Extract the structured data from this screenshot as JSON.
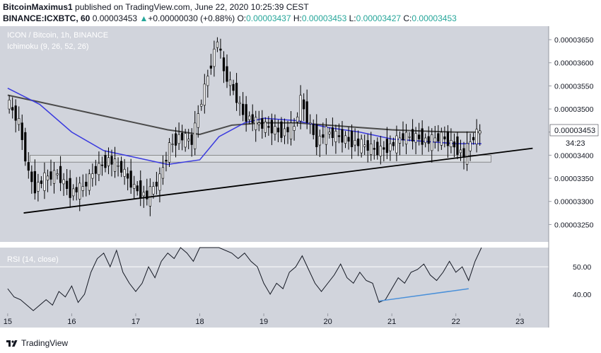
{
  "header": {
    "author": "BitcoinMaximus1",
    "published": "published on TradingView.com, June 22, 2020 10:25:39 CEST",
    "symbol": "BINANCE:ICXBTC, 60",
    "last": "0.00003453",
    "change": "+0.00000030 (+0.88%)",
    "o_label": "O:",
    "o": "0.00003437",
    "h_label": "H:",
    "h": "0.00003453",
    "l_label": "L:",
    "l": "0.00003427",
    "c_label": "C:",
    "c": "0.00003453"
  },
  "legend": {
    "title": "ICON / Bitcoin, 1h, BINANCE",
    "indicator": "Ichimoku (9, 26, 52, 26)",
    "rsi": "RSI (14, close)"
  },
  "price_badge": "0.00003453",
  "countdown": "34:23",
  "brand": "TradingView",
  "colors": {
    "background": "#d1d4dc",
    "up_candle": "#ffffff",
    "down_candle": "#000000",
    "ma_fast": "#3a3adf",
    "ma_slow": "#4a4a4a",
    "rsi_divergence": "#4a90d9"
  },
  "chart_data": [
    {
      "type": "candlestick",
      "title": "ICON / Bitcoin, 1h, BINANCE",
      "xlabel": "",
      "ylabel": "",
      "x_ticks": [
        "15",
        "16",
        "17",
        "18",
        "19",
        "20",
        "21",
        "22",
        "23"
      ],
      "y_ticks": [
        "0.00003250",
        "0.00003300",
        "0.00003350",
        "0.00003400",
        "0.00003450",
        "0.00003500",
        "0.00003550",
        "0.00003600",
        "0.00003650"
      ],
      "ylim": [
        3.22e-05,
        3.67e-05
      ],
      "price_close_path": [
        [
          15.0,
          3.52e-05
        ],
        [
          15.2,
          3.47e-05
        ],
        [
          15.35,
          3.36e-05
        ],
        [
          15.45,
          3.33e-05
        ],
        [
          15.6,
          3.35e-05
        ],
        [
          15.8,
          3.36e-05
        ],
        [
          16.0,
          3.32e-05
        ],
        [
          16.2,
          3.33e-05
        ],
        [
          16.4,
          3.37e-05
        ],
        [
          16.6,
          3.39e-05
        ],
        [
          16.8,
          3.37e-05
        ],
        [
          17.0,
          3.33e-05
        ],
        [
          17.2,
          3.31e-05
        ],
        [
          17.4,
          3.35e-05
        ],
        [
          17.55,
          3.42e-05
        ],
        [
          17.7,
          3.44e-05
        ],
        [
          17.9,
          3.43e-05
        ],
        [
          18.05,
          3.52e-05
        ],
        [
          18.2,
          3.6e-05
        ],
        [
          18.3,
          3.65e-05
        ],
        [
          18.4,
          3.58e-05
        ],
        [
          18.55,
          3.54e-05
        ],
        [
          18.7,
          3.49e-05
        ],
        [
          18.9,
          3.47e-05
        ],
        [
          19.1,
          3.46e-05
        ],
        [
          19.3,
          3.45e-05
        ],
        [
          19.5,
          3.46e-05
        ],
        [
          19.6,
          3.52e-05
        ],
        [
          19.7,
          3.48e-05
        ],
        [
          19.85,
          3.43e-05
        ],
        [
          20.0,
          3.45e-05
        ],
        [
          20.2,
          3.44e-05
        ],
        [
          20.4,
          3.43e-05
        ],
        [
          20.6,
          3.42e-05
        ],
        [
          20.8,
          3.41e-05
        ],
        [
          21.0,
          3.42e-05
        ],
        [
          21.2,
          3.44e-05
        ],
        [
          21.4,
          3.44e-05
        ],
        [
          21.6,
          3.43e-05
        ],
        [
          21.8,
          3.44e-05
        ],
        [
          22.0,
          3.42e-05
        ],
        [
          22.15,
          3.4e-05
        ],
        [
          22.3,
          3.44e-05
        ],
        [
          22.4,
          3.453e-05
        ]
      ],
      "ma_fast": [
        [
          15.0,
          3.545e-05
        ],
        [
          15.5,
          3.51e-05
        ],
        [
          16.0,
          3.45e-05
        ],
        [
          16.5,
          3.41e-05
        ],
        [
          17.0,
          3.395e-05
        ],
        [
          17.5,
          3.38e-05
        ],
        [
          18.0,
          3.39e-05
        ],
        [
          18.3,
          3.44e-05
        ],
        [
          18.7,
          3.47e-05
        ],
        [
          19.0,
          3.48e-05
        ],
        [
          19.5,
          3.475e-05
        ],
        [
          20.0,
          3.46e-05
        ],
        [
          20.5,
          3.45e-05
        ],
        [
          21.0,
          3.435e-05
        ],
        [
          21.5,
          3.43e-05
        ],
        [
          22.0,
          3.425e-05
        ],
        [
          22.4,
          3.425e-05
        ]
      ],
      "ma_slow": [
        [
          15.0,
          3.53e-05
        ],
        [
          15.5,
          3.515e-05
        ],
        [
          16.0,
          3.5e-05
        ],
        [
          16.5,
          3.485e-05
        ],
        [
          17.0,
          3.47e-05
        ],
        [
          17.5,
          3.455e-05
        ],
        [
          18.0,
          3.445e-05
        ],
        [
          18.5,
          3.465e-05
        ],
        [
          19.0,
          3.47e-05
        ],
        [
          19.5,
          3.47e-05
        ],
        [
          20.0,
          3.465e-05
        ],
        [
          20.5,
          3.46e-05
        ],
        [
          21.0,
          3.455e-05
        ],
        [
          21.5,
          3.452e-05
        ],
        [
          22.0,
          3.45e-05
        ],
        [
          22.4,
          3.45e-05
        ]
      ],
      "trendline": [
        [
          15.25,
          3.275e-05
        ],
        [
          23.2,
          3.415e-05
        ]
      ],
      "support_zone": [
        3.385e-05,
        3.4e-05,
        15.35,
        22.55
      ]
    },
    {
      "type": "line",
      "title": "RSI (14, close)",
      "x_ticks": [
        "15",
        "16",
        "17",
        "18",
        "19",
        "20",
        "21",
        "22",
        "23"
      ],
      "y_ticks": [
        "40.00",
        "50.00"
      ],
      "ylim": [
        33,
        57
      ],
      "values": [
        [
          15.0,
          42
        ],
        [
          15.1,
          39
        ],
        [
          15.2,
          38
        ],
        [
          15.3,
          36
        ],
        [
          15.4,
          34
        ],
        [
          15.5,
          36
        ],
        [
          15.6,
          38
        ],
        [
          15.7,
          36
        ],
        [
          15.8,
          41
        ],
        [
          15.9,
          39
        ],
        [
          16.0,
          43
        ],
        [
          16.1,
          37
        ],
        [
          16.2,
          40
        ],
        [
          16.3,
          48
        ],
        [
          16.4,
          53
        ],
        [
          16.5,
          55
        ],
        [
          16.6,
          50
        ],
        [
          16.7,
          56
        ],
        [
          16.8,
          48
        ],
        [
          16.9,
          44
        ],
        [
          17.0,
          41
        ],
        [
          17.1,
          44
        ],
        [
          17.2,
          50
        ],
        [
          17.3,
          46
        ],
        [
          17.4,
          52
        ],
        [
          17.5,
          55
        ],
        [
          17.6,
          53
        ],
        [
          17.7,
          57
        ],
        [
          17.8,
          55
        ],
        [
          17.9,
          52
        ],
        [
          18.0,
          57
        ],
        [
          18.1,
          57
        ],
        [
          18.3,
          57
        ],
        [
          18.5,
          55
        ],
        [
          18.6,
          53
        ],
        [
          18.7,
          55
        ],
        [
          18.8,
          52
        ],
        [
          18.9,
          50
        ],
        [
          19.0,
          44
        ],
        [
          19.1,
          40
        ],
        [
          19.2,
          44
        ],
        [
          19.3,
          42
        ],
        [
          19.4,
          48
        ],
        [
          19.5,
          50
        ],
        [
          19.6,
          54
        ],
        [
          19.7,
          49
        ],
        [
          19.8,
          44
        ],
        [
          19.9,
          41
        ],
        [
          20.0,
          44
        ],
        [
          20.1,
          47
        ],
        [
          20.2,
          51
        ],
        [
          20.3,
          46
        ],
        [
          20.4,
          44
        ],
        [
          20.5,
          48
        ],
        [
          20.6,
          45
        ],
        [
          20.7,
          44
        ],
        [
          20.8,
          37
        ],
        [
          20.9,
          38
        ],
        [
          21.0,
          42
        ],
        [
          21.1,
          46
        ],
        [
          21.2,
          44
        ],
        [
          21.3,
          48
        ],
        [
          21.4,
          49
        ],
        [
          21.5,
          51
        ],
        [
          21.6,
          47
        ],
        [
          21.7,
          45
        ],
        [
          21.8,
          48
        ],
        [
          21.9,
          52
        ],
        [
          22.0,
          48
        ],
        [
          22.1,
          50
        ],
        [
          22.2,
          45
        ],
        [
          22.3,
          52
        ],
        [
          22.4,
          57
        ]
      ],
      "divergence_line": [
        [
          20.8,
          37.5
        ],
        [
          22.2,
          42
        ]
      ]
    }
  ]
}
